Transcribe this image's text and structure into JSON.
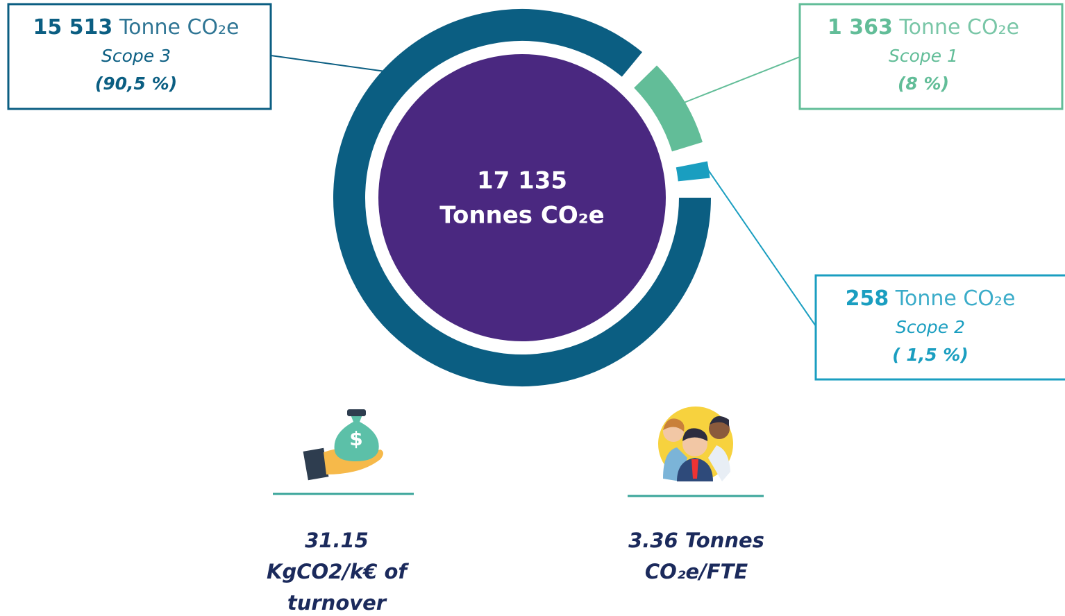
{
  "chart_data": {
    "type": "donut",
    "categories": [
      "Scope 3",
      "Scope 1",
      "Scope 2"
    ],
    "values": [
      15513,
      1363,
      258
    ],
    "value_labels": [
      "15 513",
      "1 363",
      "258"
    ],
    "unit": "Tonne CO₂e",
    "percents": [
      90.5,
      8,
      1.5
    ],
    "percent_labels": [
      "(90,5 %)",
      "(8 %)",
      "( 1,5 %)"
    ],
    "colors": [
      "#0b5e82",
      "#62bd98",
      "#1a9ec0"
    ],
    "center_value": "17 135",
    "center_unit": "Tonnes CO₂e",
    "center_color": "#4a2880"
  },
  "metrics": [
    {
      "lines": [
        "31.15",
        "KgCO2/k€ of",
        "turnover"
      ]
    },
    {
      "lines": [
        "3.36 Tonnes",
        "CO₂e/FTE"
      ]
    }
  ]
}
